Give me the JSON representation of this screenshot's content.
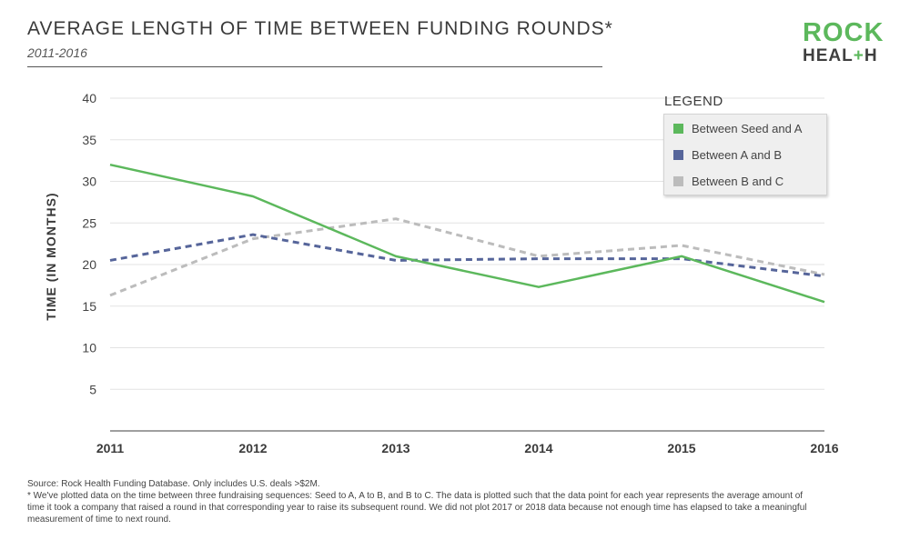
{
  "header": {
    "title": "AVERAGE LENGTH OF TIME BETWEEN FUNDING ROUNDS*",
    "subtitle": "2011-2016"
  },
  "logo": {
    "line1": "ROCK",
    "line2_a": "HEAL",
    "line2_plus": "+",
    "line2_b": "H"
  },
  "chart_data": {
    "type": "line",
    "title": "AVERAGE LENGTH OF TIME BETWEEN FUNDING ROUNDS*",
    "subtitle": "2011-2016",
    "ylabel": "TIME (IN MONTHS)",
    "xlabel": "",
    "x": [
      2011,
      2012,
      2013,
      2014,
      2015,
      2016
    ],
    "x_tick_labels": [
      "2011",
      "2012",
      "2013",
      "2014",
      "2015",
      "2016"
    ],
    "y_ticks": [
      5,
      10,
      15,
      20,
      25,
      30,
      35,
      40
    ],
    "y_tick_labels": [
      "5",
      "10",
      "15",
      "20",
      "25",
      "30",
      "35",
      "40"
    ],
    "ylim": [
      0,
      40
    ],
    "grid": true,
    "legend_title": "LEGEND",
    "legend_position": "top-right",
    "series": [
      {
        "name": "Between Seed and A",
        "color": "#5cb85c",
        "style": "solid",
        "values": [
          32,
          28.2,
          21,
          17.3,
          21,
          15.5
        ]
      },
      {
        "name": "Between A and B",
        "color": "#56659a",
        "style": "dashed",
        "values": [
          20.5,
          23.6,
          20.5,
          20.7,
          20.7,
          18.6
        ]
      },
      {
        "name": "Between B and C",
        "color": "#bcbcbc",
        "style": "dashed",
        "values": [
          16.3,
          23.1,
          25.5,
          21,
          22.3,
          18.8
        ]
      }
    ]
  },
  "footnote": {
    "source": "Source: Rock Health Funding Database. Only includes U.S. deals >$2M.",
    "note": "* We've plotted data on the time between three fundraising sequences: Seed to A, A to B, and B to C. The data is plotted such that the data point for each year represents the average amount of time it took a company that raised a round in that corresponding year to raise its subsequent round. We did not plot 2017 or 2018 data because not enough time has elapsed to take a meaningful measurement of time to next round."
  }
}
